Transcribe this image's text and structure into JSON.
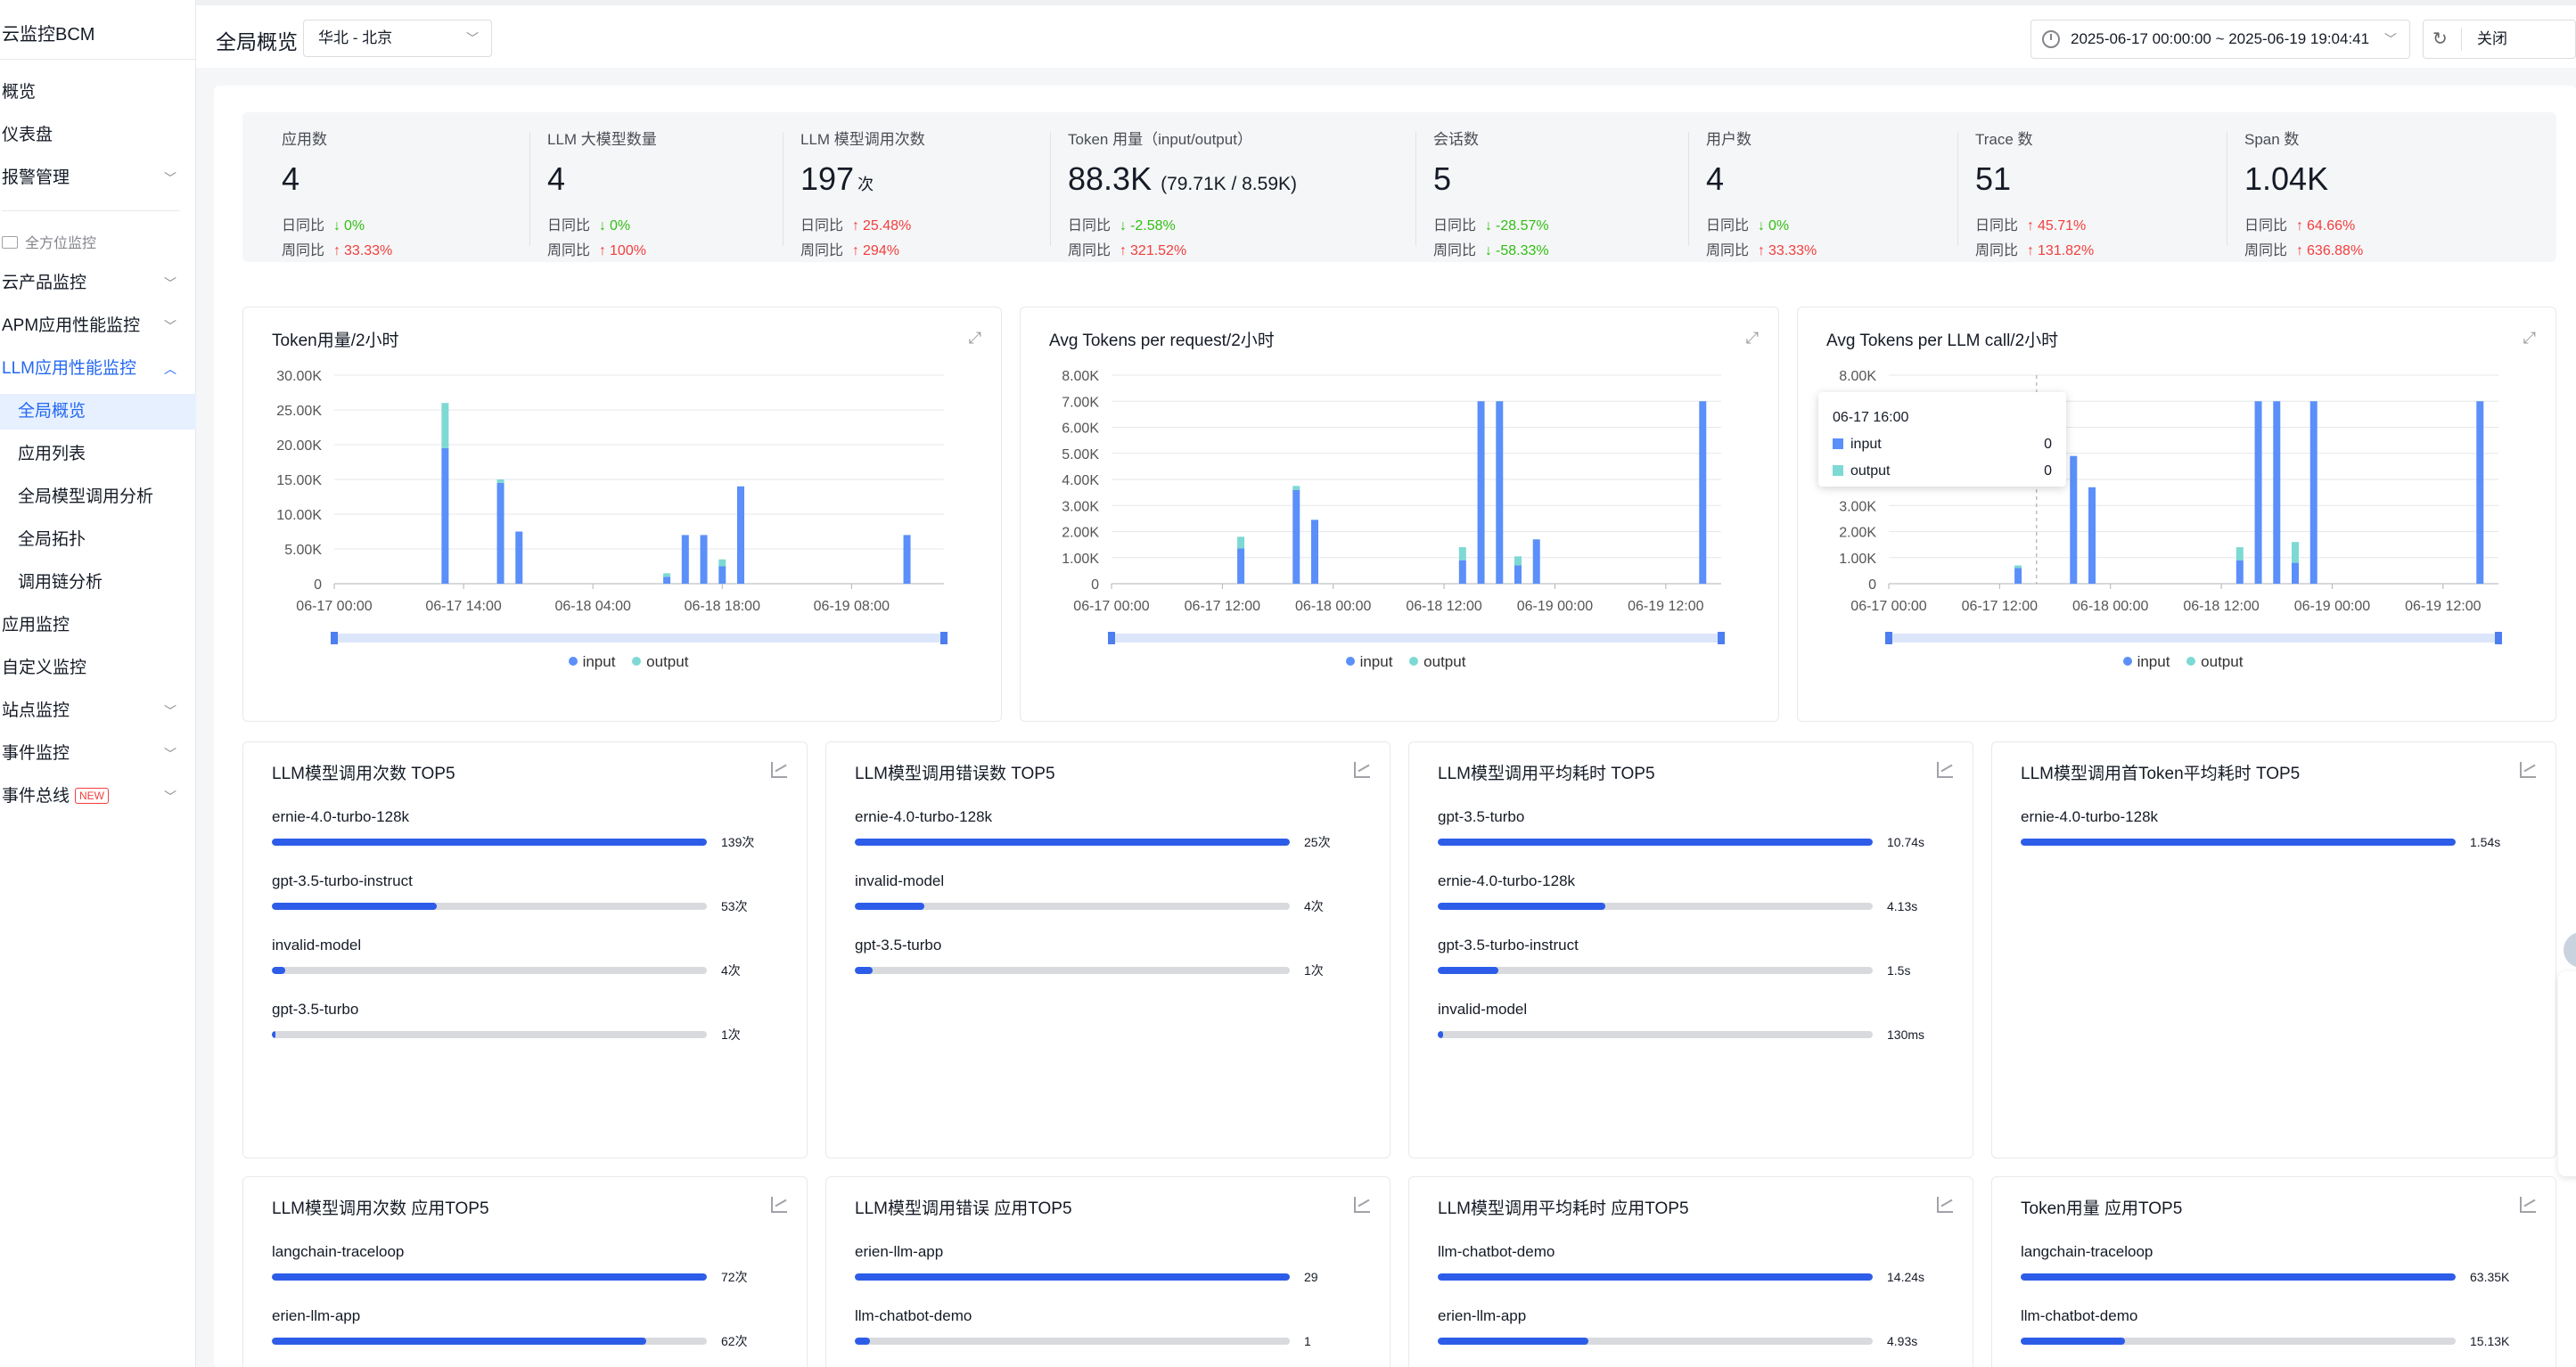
{
  "app": {
    "title": "云监控BCM"
  },
  "sidebar": {
    "items": [
      {
        "label": "概览"
      },
      {
        "label": "仪表盘"
      },
      {
        "label": "报警管理"
      }
    ],
    "section_label": "全方位监控",
    "nav": [
      {
        "label": "云产品监控"
      },
      {
        "label": "APM应用性能监控"
      },
      {
        "label": "LLM应用性能监控"
      }
    ],
    "sub": [
      {
        "label": "全局概览"
      },
      {
        "label": "应用列表"
      },
      {
        "label": "全局模型调用分析"
      },
      {
        "label": "全局拓扑"
      },
      {
        "label": "调用链分析"
      }
    ],
    "rest": [
      {
        "label": "应用监控"
      },
      {
        "label": "自定义监控"
      },
      {
        "label": "站点监控"
      },
      {
        "label": "事件监控"
      },
      {
        "label": "事件总线",
        "badge": "NEW"
      }
    ]
  },
  "header": {
    "page_title": "全局概览",
    "region": "华北 - 北京",
    "time_range": "2025-06-17 00:00:00 ~ 2025-06-19 19:04:41",
    "refresh": "关闭"
  },
  "stats": {
    "day_label": "日同比",
    "week_label": "周同比",
    "items": [
      {
        "label": "应用数",
        "value": "4",
        "unit": "",
        "extra": "",
        "day": "0%",
        "day_dir": "down",
        "week": "33.33%",
        "week_dir": "up"
      },
      {
        "label": "LLM 大模型数量",
        "value": "4",
        "unit": "",
        "extra": "",
        "day": "0%",
        "day_dir": "down",
        "week": "100%",
        "week_dir": "up"
      },
      {
        "label": "LLM 模型调用次数",
        "value": "197",
        "unit": "次",
        "extra": "",
        "day": "25.48%",
        "day_dir": "up",
        "week": "294%",
        "week_dir": "up"
      },
      {
        "label": "Token 用量（input/output）",
        "value": "88.3K",
        "unit": "",
        "extra": "(79.71K / 8.59K)",
        "day": "-2.58%",
        "day_dir": "down",
        "week": "321.52%",
        "week_dir": "up"
      },
      {
        "label": "会话数",
        "value": "5",
        "unit": "",
        "extra": "",
        "day": "-28.57%",
        "day_dir": "down",
        "week": "-58.33%",
        "week_dir": "down"
      },
      {
        "label": "用户数",
        "value": "4",
        "unit": "",
        "extra": "",
        "day": "0%",
        "day_dir": "down",
        "week": "33.33%",
        "week_dir": "up"
      },
      {
        "label": "Trace 数",
        "value": "51",
        "unit": "",
        "extra": "",
        "day": "45.71%",
        "day_dir": "up",
        "week": "131.82%",
        "week_dir": "up"
      },
      {
        "label": "Span 数",
        "value": "1.04K",
        "unit": "",
        "extra": "",
        "day": "64.66%",
        "day_dir": "up",
        "week": "636.88%",
        "week_dir": "up"
      }
    ]
  },
  "colors": {
    "input": "#5b8ff9",
    "output": "#7dd9d3",
    "accent": "#2468f2",
    "up": "#f33e3e",
    "down": "#30bf13"
  },
  "chart_data": [
    {
      "type": "bar",
      "title": "Token用量/2小时",
      "stacked": true,
      "ylim": [
        0,
        30000
      ],
      "y_ticks": [
        "0",
        "5.00K",
        "10.00K",
        "15.00K",
        "20.00K",
        "25.00K",
        "30.00K"
      ],
      "x_ticks": [
        "06-17 00:00",
        "06-17 14:00",
        "06-18 04:00",
        "06-18 18:00",
        "06-19 08:00"
      ],
      "x_range_hours": [
        0,
        66
      ],
      "x_tick_hours": [
        0,
        14,
        28,
        42,
        56
      ],
      "legend": [
        "input",
        "output"
      ],
      "series": [
        {
          "name": "input",
          "points": [
            [
              12,
              19500
            ],
            [
              18,
              14500
            ],
            [
              20,
              7500
            ],
            [
              36,
              1000
            ],
            [
              38,
              7000
            ],
            [
              40,
              7000
            ],
            [
              42,
              2500
            ],
            [
              44,
              14000
            ],
            [
              62,
              7000
            ]
          ]
        },
        {
          "name": "output",
          "points": [
            [
              12,
              6500
            ],
            [
              18,
              500
            ],
            [
              20,
              0
            ],
            [
              36,
              500
            ],
            [
              38,
              0
            ],
            [
              40,
              0
            ],
            [
              42,
              1000
            ],
            [
              44,
              0
            ],
            [
              62,
              0
            ]
          ]
        }
      ]
    },
    {
      "type": "bar",
      "title": "Avg Tokens per request/2小时",
      "stacked": true,
      "ylim": [
        0,
        8000
      ],
      "y_ticks": [
        "0",
        "1.00K",
        "2.00K",
        "3.00K",
        "4.00K",
        "5.00K",
        "6.00K",
        "7.00K",
        "8.00K"
      ],
      "x_ticks": [
        "06-17 00:00",
        "06-17 12:00",
        "06-18 00:00",
        "06-18 12:00",
        "06-19 00:00",
        "06-19 12:00"
      ],
      "x_range_hours": [
        0,
        66
      ],
      "x_tick_hours": [
        0,
        12,
        24,
        36,
        48,
        60
      ],
      "legend": [
        "input",
        "output"
      ],
      "series": [
        {
          "name": "input",
          "points": [
            [
              14,
              1350
            ],
            [
              20,
              3600
            ],
            [
              22,
              2450
            ],
            [
              38,
              900
            ],
            [
              40,
              7000
            ],
            [
              42,
              7000
            ],
            [
              44,
              700
            ],
            [
              46,
              1700
            ],
            [
              64,
              7000
            ]
          ]
        },
        {
          "name": "output",
          "points": [
            [
              14,
              450
            ],
            [
              20,
              150
            ],
            [
              22,
              0
            ],
            [
              38,
              500
            ],
            [
              40,
              0
            ],
            [
              42,
              0
            ],
            [
              44,
              350
            ],
            [
              46,
              0
            ],
            [
              64,
              0
            ]
          ]
        }
      ]
    },
    {
      "type": "bar",
      "title": "Avg Tokens per LLM call/2小时",
      "stacked": true,
      "ylim": [
        0,
        8000
      ],
      "y_ticks": [
        "0",
        "1.00K",
        "2.00K",
        "3.00K",
        "4.00K",
        "5.00K",
        "6.00K",
        "7.00K",
        "8.00K"
      ],
      "x_ticks": [
        "06-17 00:00",
        "06-17 12:00",
        "06-18 00:00",
        "06-18 12:00",
        "06-19 00:00",
        "06-19 12:00"
      ],
      "x_range_hours": [
        0,
        66
      ],
      "x_tick_hours": [
        0,
        12,
        24,
        36,
        48,
        60
      ],
      "legend": [
        "input",
        "output"
      ],
      "tooltip": {
        "time": "06-17 16:00",
        "input": "0",
        "output": "0",
        "x_hour": 16
      },
      "series": [
        {
          "name": "input",
          "points": [
            [
              14,
              600
            ],
            [
              20,
              4900
            ],
            [
              22,
              3700
            ],
            [
              38,
              900
            ],
            [
              40,
              7000
            ],
            [
              42,
              7000
            ],
            [
              44,
              800
            ],
            [
              46,
              7000
            ],
            [
              64,
              7000
            ]
          ]
        },
        {
          "name": "output",
          "points": [
            [
              14,
              100
            ],
            [
              20,
              0
            ],
            [
              22,
              0
            ],
            [
              38,
              500
            ],
            [
              40,
              0
            ],
            [
              42,
              0
            ],
            [
              44,
              800
            ],
            [
              46,
              0
            ],
            [
              64,
              0
            ]
          ]
        }
      ]
    }
  ],
  "top5": [
    {
      "title": "LLM模型调用次数 TOP5",
      "rows": [
        {
          "name": "ernie-4.0-turbo-128k",
          "value": "139次",
          "ratio": 1.0
        },
        {
          "name": "gpt-3.5-turbo-instruct",
          "value": "53次",
          "ratio": 0.38
        },
        {
          "name": "invalid-model",
          "value": "4次",
          "ratio": 0.03
        },
        {
          "name": "gpt-3.5-turbo",
          "value": "1次",
          "ratio": 0.007
        }
      ]
    },
    {
      "title": "LLM模型调用错误数 TOP5",
      "rows": [
        {
          "name": "ernie-4.0-turbo-128k",
          "value": "25次",
          "ratio": 1.0
        },
        {
          "name": "invalid-model",
          "value": "4次",
          "ratio": 0.16
        },
        {
          "name": "gpt-3.5-turbo",
          "value": "1次",
          "ratio": 0.04
        }
      ]
    },
    {
      "title": "LLM模型调用平均耗时 TOP5",
      "rows": [
        {
          "name": "gpt-3.5-turbo",
          "value": "10.74s",
          "ratio": 1.0
        },
        {
          "name": "ernie-4.0-turbo-128k",
          "value": "4.13s",
          "ratio": 0.385
        },
        {
          "name": "gpt-3.5-turbo-instruct",
          "value": "1.5s",
          "ratio": 0.14
        },
        {
          "name": "invalid-model",
          "value": "130ms",
          "ratio": 0.012
        }
      ]
    },
    {
      "title": "LLM模型调用首Token平均耗时 TOP5",
      "rows": [
        {
          "name": "ernie-4.0-turbo-128k",
          "value": "1.54s",
          "ratio": 1.0
        }
      ]
    },
    {
      "title": "LLM模型调用次数 应用TOP5",
      "rows": [
        {
          "name": "langchain-traceloop",
          "value": "72次",
          "ratio": 1.0
        },
        {
          "name": "erien-llm-app",
          "value": "62次",
          "ratio": 0.86
        }
      ]
    },
    {
      "title": "LLM模型调用错误 应用TOP5",
      "rows": [
        {
          "name": "erien-llm-app",
          "value": "29",
          "ratio": 1.0
        },
        {
          "name": "llm-chatbot-demo",
          "value": "1",
          "ratio": 0.034
        }
      ]
    },
    {
      "title": "LLM模型调用平均耗时 应用TOP5",
      "rows": [
        {
          "name": "llm-chatbot-demo",
          "value": "14.24s",
          "ratio": 1.0
        },
        {
          "name": "erien-llm-app",
          "value": "4.93s",
          "ratio": 0.346
        }
      ]
    },
    {
      "title": "Token用量 应用TOP5",
      "rows": [
        {
          "name": "langchain-traceloop",
          "value": "63.35K",
          "ratio": 1.0
        },
        {
          "name": "llm-chatbot-demo",
          "value": "15.13K",
          "ratio": 0.239
        }
      ]
    }
  ]
}
